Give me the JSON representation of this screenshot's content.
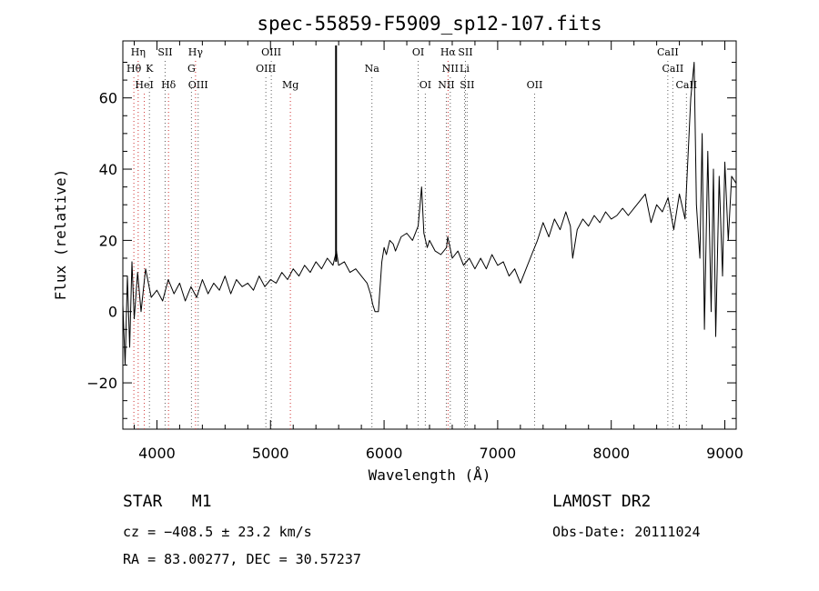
{
  "chart_data": {
    "type": "line",
    "title": "spec-55859-F5909_sp12-107.fits",
    "xlabel": "Wavelength (Å)",
    "ylabel": "Flux (relative)",
    "xlim": [
      3700,
      9100
    ],
    "ylim": [
      -33,
      76
    ],
    "x_ticks": [
      4000,
      5000,
      6000,
      7000,
      8000,
      9000
    ],
    "y_ticks": [
      -20,
      0,
      20,
      40,
      60
    ],
    "series": [
      {
        "x": [
          3700,
          3720,
          3740,
          3760,
          3780,
          3800,
          3830,
          3860,
          3900,
          3950,
          4000,
          4050,
          4100,
          4150,
          4200,
          4250,
          4300,
          4350,
          4400,
          4450,
          4500,
          4550,
          4600,
          4650,
          4700,
          4750,
          4800,
          4850,
          4900,
          4950,
          5000,
          5050,
          5100,
          5150,
          5200,
          5250,
          5300,
          5350,
          5400,
          5450,
          5500,
          5550,
          5580,
          5600,
          5650,
          5700,
          5750,
          5800,
          5850,
          5880,
          5900,
          5920,
          5950,
          5980,
          6000,
          6020,
          6050,
          6080,
          6100,
          6150,
          6200,
          6250,
          6300,
          6330,
          6350,
          6380,
          6400,
          6450,
          6500,
          6550,
          6560,
          6600,
          6650,
          6700,
          6750,
          6800,
          6850,
          6900,
          6950,
          7000,
          7050,
          7100,
          7150,
          7200,
          7250,
          7300,
          7350,
          7400,
          7450,
          7500,
          7550,
          7600,
          7640,
          7660,
          7700,
          7750,
          7800,
          7850,
          7900,
          7950,
          8000,
          8050,
          8100,
          8150,
          8200,
          8250,
          8300,
          8350,
          8400,
          8450,
          8500,
          8550,
          8600,
          8650,
          8700,
          8730,
          8750,
          8780,
          8800,
          8820,
          8850,
          8880,
          8900,
          8920,
          8950,
          8980,
          9000,
          9030,
          9060,
          9100
        ],
        "y": [
          2,
          -15,
          10,
          -10,
          14,
          -2,
          11,
          0,
          12,
          4,
          6,
          3,
          9,
          5,
          8,
          3,
          7,
          4,
          9,
          5,
          8,
          6,
          10,
          5,
          9,
          7,
          8,
          6,
          10,
          7,
          9,
          8,
          11,
          9,
          12,
          10,
          13,
          11,
          14,
          12,
          15,
          13,
          17,
          13,
          14,
          11,
          12,
          10,
          8,
          5,
          2,
          0,
          0,
          14,
          18,
          16,
          20,
          19,
          17,
          21,
          22,
          20,
          24,
          35,
          22,
          18,
          20,
          17,
          16,
          18,
          21,
          15,
          17,
          13,
          15,
          12,
          15,
          12,
          16,
          13,
          14,
          10,
          12,
          8,
          12,
          16,
          20,
          25,
          21,
          26,
          23,
          28,
          24,
          15,
          23,
          26,
          24,
          27,
          25,
          28,
          26,
          27,
          29,
          27,
          29,
          31,
          33,
          25,
          30,
          28,
          32,
          23,
          33,
          26,
          60,
          70,
          30,
          15,
          50,
          -5,
          45,
          0,
          40,
          -7,
          38,
          10,
          42,
          20,
          38,
          36
        ],
        "color": "#000000"
      }
    ],
    "spectral_lines": [
      {
        "label": "Hη",
        "x": 3835,
        "row": 0,
        "color": "#d03030"
      },
      {
        "label": "Hθ",
        "x": 3797,
        "row": 1,
        "color": "#d03030"
      },
      {
        "label": "HeI",
        "x": 3889,
        "row": 2,
        "color": "#d03030"
      },
      {
        "label": "K",
        "x": 3934,
        "row": 1,
        "color": "#606060"
      },
      {
        "label": "SII",
        "x": 4072,
        "row": 0,
        "color": "#606060"
      },
      {
        "label": "Hδ",
        "x": 4102,
        "row": 2,
        "color": "#d03030"
      },
      {
        "label": "Hγ",
        "x": 4340,
        "row": 0,
        "color": "#d03030"
      },
      {
        "label": "G",
        "x": 4304,
        "row": 1,
        "color": "#606060"
      },
      {
        "label": "OIII",
        "x": 4363,
        "row": 2,
        "color": "#606060"
      },
      {
        "label": "OIII",
        "x": 5007,
        "row": 0,
        "color": "#606060"
      },
      {
        "label": "OIII",
        "x": 4959,
        "row": 1,
        "color": "#606060"
      },
      {
        "label": "Mg",
        "x": 5175,
        "row": 2,
        "color": "#d03030"
      },
      {
        "label": "Na",
        "x": 5893,
        "row": 1,
        "color": "#606060"
      },
      {
        "label": "OI",
        "x": 6300,
        "row": 0,
        "color": "#606060"
      },
      {
        "label": "OI",
        "x": 6363,
        "row": 2,
        "color": "#606060"
      },
      {
        "label": "Hα",
        "x": 6563,
        "row": 0,
        "color": "#d03030"
      },
      {
        "label": "SII",
        "x": 6716,
        "row": 0,
        "color": "#606060"
      },
      {
        "label": "NII",
        "x": 6583,
        "row": 1,
        "color": "#606060"
      },
      {
        "label": "Li",
        "x": 6708,
        "row": 1,
        "color": "#606060"
      },
      {
        "label": "NII",
        "x": 6548,
        "row": 2,
        "color": "#606060"
      },
      {
        "label": "SII",
        "x": 6731,
        "row": 2,
        "color": "#606060"
      },
      {
        "label": "OII",
        "x": 7325,
        "row": 2,
        "color": "#606060"
      },
      {
        "label": "CaII",
        "x": 8498,
        "row": 0,
        "color": "#606060"
      },
      {
        "label": "CaII",
        "x": 8542,
        "row": 1,
        "color": "#606060"
      },
      {
        "label": "CaII",
        "x": 8662,
        "row": 2,
        "color": "#606060"
      }
    ],
    "marker_line_x": 5577,
    "grid": false
  },
  "info": {
    "object_type": "STAR",
    "subclass": "M1",
    "survey": "LAMOST DR2",
    "redshift": "cz = −408.5 ± 23.2 km/s",
    "obs_date": "Obs-Date: 20111024",
    "coords": "RA =  83.00277, DEC =  30.57237"
  }
}
